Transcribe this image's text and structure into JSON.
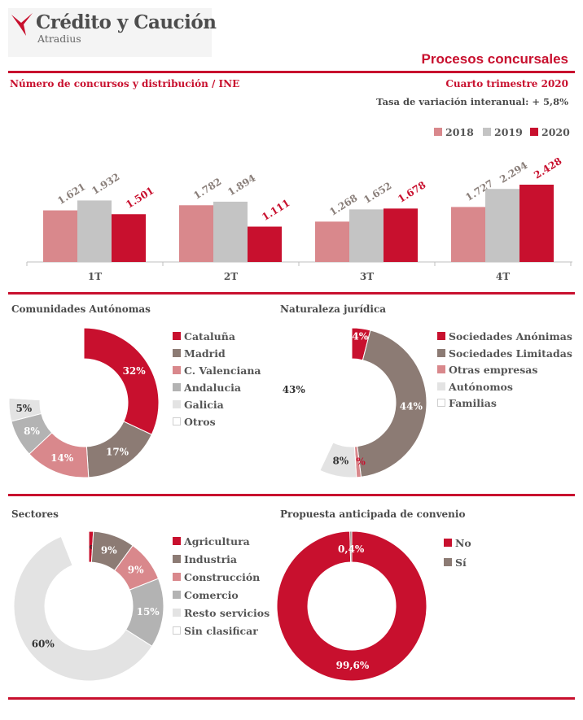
{
  "header": {
    "brand": "Crédito y Caución",
    "brand_sub": "Atradius",
    "title": "Procesos concursales",
    "subtitle": "Número de concursos y distribución / INE",
    "period": "Cuarto trimestre 2020",
    "variation": "Tasa de variación interanual:  + 5,8%"
  },
  "colors": {
    "c2018": "#d9888c",
    "c2019": "#c4c4c4",
    "c2020": "#c8102e"
  },
  "chart_data": [
    {
      "type": "bar",
      "categories": [
        "1T",
        "2T",
        "3T",
        "4T"
      ],
      "series": [
        {
          "name": "2018",
          "values": [
            1621,
            1782,
            1268,
            1727
          ],
          "labels": [
            "1.621",
            "1.782",
            "1.268",
            "1.727"
          ]
        },
        {
          "name": "2019",
          "values": [
            1932,
            1894,
            1652,
            2294
          ],
          "labels": [
            "1.932",
            "1.894",
            "1.652",
            "2.294"
          ]
        },
        {
          "name": "2020",
          "values": [
            1501,
            1111,
            1678,
            2428
          ],
          "labels": [
            "1.501",
            "1.111",
            "1.678",
            "2.428"
          ]
        }
      ],
      "legend": "top-right",
      "ylim": [
        0,
        2500
      ]
    },
    {
      "type": "pie",
      "title": "Comunidades Autónomas",
      "labels": [
        "Cataluña",
        "Madrid",
        "C. Valenciana",
        "Andalucia",
        "Galicia",
        "Otros"
      ],
      "values": [
        32,
        17,
        14,
        8,
        5,
        24
      ],
      "value_labels": [
        "32%",
        "17%",
        "14%",
        "8%",
        "5%",
        ""
      ],
      "colors": [
        "#c8102e",
        "#8c7b74",
        "#d9888c",
        "#b3b3b3",
        "#e3e3e3",
        "#ffffff"
      ]
    },
    {
      "type": "pie",
      "title": "Naturaleza jurídica",
      "labels": [
        "Sociedades Anónimas",
        "Sociedades Limitadas",
        "Otras empresas",
        "Autónomos",
        "Familias"
      ],
      "values": [
        4,
        44,
        1,
        8,
        43
      ],
      "value_labels": [
        "4%",
        "44%",
        "1%",
        "8%",
        "43%"
      ],
      "colors": [
        "#c8102e",
        "#8c7b74",
        "#d9888c",
        "#e3e3e3",
        "#ffffff"
      ]
    },
    {
      "type": "pie",
      "title": "Sectores",
      "labels": [
        "Agricultura",
        "Industria",
        "Construcción",
        "Comercio",
        "Resto servicios",
        "Sin clasificar"
      ],
      "values": [
        1,
        9,
        9,
        15,
        60,
        6
      ],
      "value_labels": [
        "1%",
        "9%",
        "9%",
        "15%",
        "60%",
        ""
      ],
      "colors": [
        "#c8102e",
        "#8c7b74",
        "#d9888c",
        "#b3b3b3",
        "#e3e3e3",
        "#ffffff"
      ]
    },
    {
      "type": "pie",
      "title": "Propuesta anticipada de convenio",
      "labels": [
        "No",
        "Sí"
      ],
      "values": [
        99.6,
        0.4
      ],
      "value_labels": [
        "99,6%",
        "0,4%"
      ],
      "colors": [
        "#c8102e",
        "#8c7b74"
      ]
    }
  ]
}
